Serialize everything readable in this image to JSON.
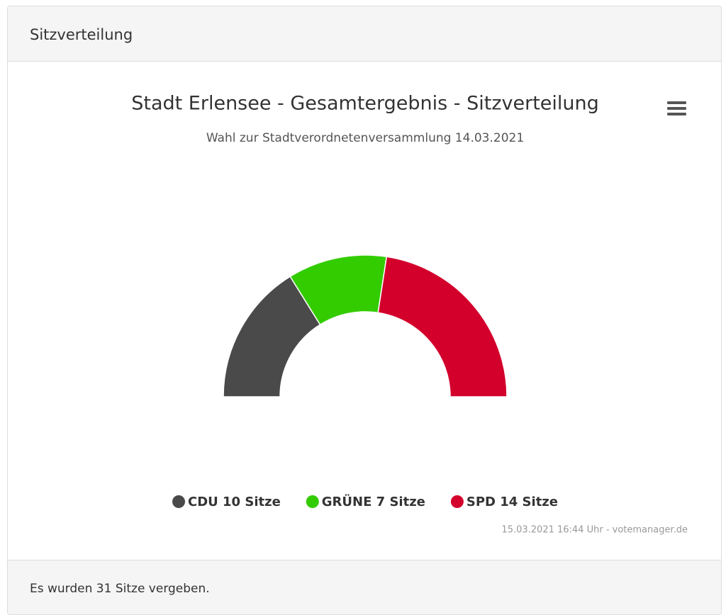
{
  "panel": {
    "header": "Sitzverteilung",
    "footer": "Es wurden 31 Sitze vergeben."
  },
  "chart_data": {
    "type": "semi-donut",
    "title": "Stadt Erlensee - Gesamtergebnis - Sitzverteilung",
    "subtitle": "Wahl zur Stadtverordnetenversammlung 14.03.2021",
    "categories": [
      "CDU 10 Sitze",
      "GRÜNE 7 Sitze",
      "SPD 14 Sitze"
    ],
    "values": [
      10,
      7,
      14
    ],
    "colors": [
      "#4a4a4a",
      "#33cc00",
      "#d3002c"
    ],
    "credits": "15.03.2021 16:44 Uhr - votemanager.de"
  }
}
